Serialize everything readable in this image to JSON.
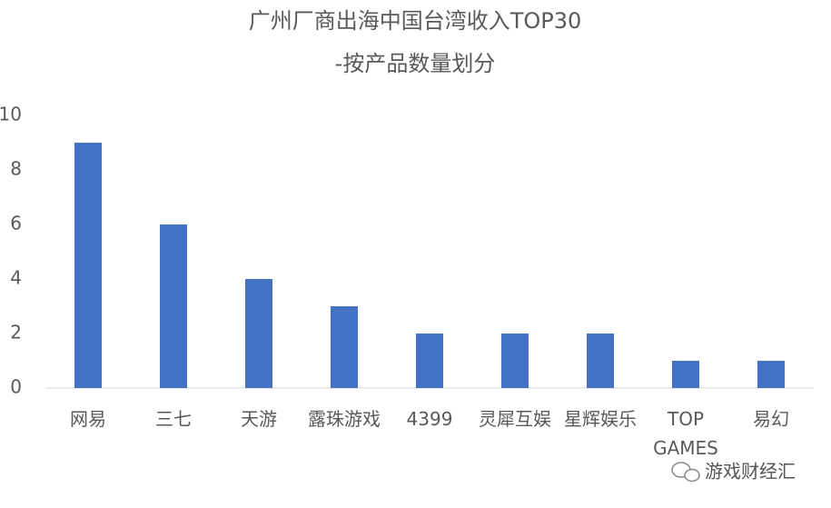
{
  "chart_data": {
    "type": "bar",
    "title": "广州厂商出海中国台湾收入TOP30",
    "subtitle": "-按产品数量划分",
    "categories": [
      "网易",
      "三七",
      "天游",
      "露珠游戏",
      "4399",
      "灵犀互娱",
      "星辉娱乐",
      "TOP GAMES",
      "易幻"
    ],
    "values": [
      9,
      6,
      4,
      3,
      2,
      2,
      2,
      1,
      1
    ],
    "color": "#4472c4",
    "ylim": [
      0,
      10
    ],
    "yticks": [
      0,
      2,
      4,
      6,
      8,
      10
    ],
    "grid": false
  },
  "watermark": "游戏财经汇"
}
